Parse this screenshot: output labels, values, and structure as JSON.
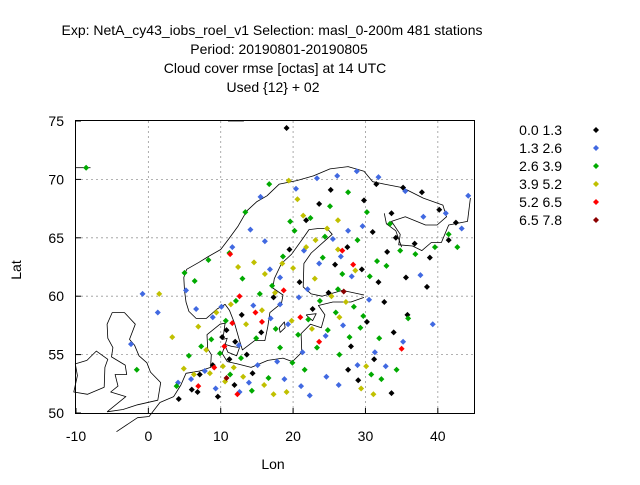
{
  "chart_data": {
    "type": "scatter",
    "title_lines": [
      "Exp: NetA_cy43_iobs_roel_v1   Selection: masl_0-200m    481 stations",
      "Period: 20190801-20190805",
      "Cloud cover rmse [octas] at  14 UTC",
      "Used {12} + 02"
    ],
    "xlabel": "Lon",
    "ylabel": "Lat",
    "xlim": [
      -10,
      45
    ],
    "ylim": [
      50,
      75
    ],
    "xticks": [
      -10,
      0,
      10,
      20,
      30,
      40
    ],
    "yticks": [
      50,
      55,
      60,
      65,
      70,
      75
    ],
    "grid": true,
    "legend_position": "right",
    "series": [
      {
        "name": "0.0 1.3",
        "color": "#000000",
        "points": [
          [
            19.1,
            74.4
          ],
          [
            31.5,
            69.6
          ],
          [
            35.2,
            69.3
          ],
          [
            37.8,
            68.9
          ],
          [
            40.2,
            67.4
          ],
          [
            42.5,
            66.3
          ],
          [
            33.6,
            67.1
          ],
          [
            29.8,
            68.2
          ],
          [
            31.0,
            65.5
          ],
          [
            34.2,
            65.0
          ],
          [
            36.8,
            64.5
          ],
          [
            41.5,
            64.8
          ],
          [
            38.9,
            63.3
          ],
          [
            33.0,
            63.8
          ],
          [
            29.5,
            62.3
          ],
          [
            31.8,
            61.2
          ],
          [
            35.6,
            61.6
          ],
          [
            38.5,
            60.8
          ],
          [
            32.6,
            59.5
          ],
          [
            35.8,
            58.4
          ],
          [
            33.9,
            56.9
          ],
          [
            30.2,
            57.8
          ],
          [
            28.0,
            55.7
          ],
          [
            31.2,
            54.6
          ],
          [
            27.6,
            53.7
          ],
          [
            29.0,
            52.8
          ],
          [
            33.6,
            51.7
          ],
          [
            21.8,
            66.5
          ],
          [
            19.5,
            64.0
          ],
          [
            20.9,
            61.2
          ],
          [
            17.3,
            59.9
          ],
          [
            12.9,
            58.4
          ],
          [
            10.8,
            57.1
          ],
          [
            12.0,
            56.1
          ],
          [
            13.6,
            55.0
          ],
          [
            11.2,
            54.6
          ],
          [
            8.9,
            54.1
          ],
          [
            7.1,
            53.3
          ],
          [
            6.0,
            52.0
          ],
          [
            9.6,
            51.4
          ],
          [
            11.9,
            52.4
          ],
          [
            14.4,
            53.4
          ],
          [
            4.2,
            51.2
          ],
          [
            6.8,
            51.8
          ],
          [
            10.2,
            56.5
          ],
          [
            15.6,
            56.9
          ],
          [
            22.7,
            58.9
          ],
          [
            24.9,
            60.3
          ],
          [
            25.8,
            62.7
          ],
          [
            27.5,
            64.2
          ],
          [
            23.6,
            67.9
          ],
          [
            25.2,
            69.1
          ]
        ]
      },
      {
        "name": "1.3 2.6",
        "color": "#4169e1",
        "points": [
          [
            -0.8,
            60.2
          ],
          [
            1.3,
            58.6
          ],
          [
            -2.4,
            55.9
          ],
          [
            4.1,
            52.6
          ],
          [
            5.9,
            52.9
          ],
          [
            7.8,
            53.6
          ],
          [
            9.3,
            52.1
          ],
          [
            12.6,
            51.8
          ],
          [
            13.9,
            52.6
          ],
          [
            15.1,
            54.1
          ],
          [
            17.8,
            54.4
          ],
          [
            18.8,
            52.9
          ],
          [
            21.1,
            52.3
          ],
          [
            22.3,
            51.5
          ],
          [
            24.6,
            53.1
          ],
          [
            26.3,
            52.4
          ],
          [
            28.9,
            54.1
          ],
          [
            31.3,
            55.2
          ],
          [
            32.8,
            54.0
          ],
          [
            35.2,
            56.1
          ],
          [
            14.5,
            59.2
          ],
          [
            16.9,
            58.1
          ],
          [
            18.2,
            59.3
          ],
          [
            20.8,
            59.9
          ],
          [
            22.0,
            60.6
          ],
          [
            23.6,
            62.8
          ],
          [
            25.5,
            64.9
          ],
          [
            27.6,
            65.6
          ],
          [
            29.6,
            66.0
          ],
          [
            26.6,
            63.4
          ],
          [
            28.1,
            61.7
          ],
          [
            21.5,
            63.9
          ],
          [
            18.2,
            61.6
          ],
          [
            16.8,
            62.3
          ],
          [
            16.1,
            64.7
          ],
          [
            14.1,
            65.7
          ],
          [
            11.6,
            64.2
          ],
          [
            15.5,
            68.5
          ],
          [
            20.4,
            69.2
          ],
          [
            23.3,
            70.1
          ],
          [
            26.1,
            70.3
          ],
          [
            28.8,
            70.7
          ],
          [
            31.8,
            70.2
          ],
          [
            35.5,
            69.0
          ],
          [
            38.0,
            66.8
          ],
          [
            41.1,
            67.1
          ],
          [
            43.3,
            65.8
          ],
          [
            44.2,
            68.6
          ],
          [
            37.6,
            61.8
          ],
          [
            39.3,
            57.6
          ],
          [
            12.5,
            55.8
          ],
          [
            10.1,
            59.1
          ],
          [
            8.9,
            58.2
          ],
          [
            6.6,
            58.9
          ],
          [
            5.2,
            60.5
          ],
          [
            26.9,
            57.5
          ],
          [
            24.5,
            56.6
          ],
          [
            21.3,
            55.2
          ],
          [
            19.3,
            57.6
          ],
          [
            30.5,
            59.7
          ]
        ]
      },
      {
        "name": "2.6 3.9",
        "color": "#00aa00",
        "points": [
          [
            -8.6,
            71.0
          ],
          [
            -1.6,
            53.7
          ],
          [
            3.9,
            52.3
          ],
          [
            5.6,
            54.9
          ],
          [
            7.3,
            55.7
          ],
          [
            8.7,
            56.3
          ],
          [
            9.9,
            55.1
          ],
          [
            11.3,
            53.3
          ],
          [
            12.8,
            54.7
          ],
          [
            14.3,
            51.9
          ],
          [
            16.6,
            53.0
          ],
          [
            18.2,
            55.6
          ],
          [
            19.9,
            54.3
          ],
          [
            21.6,
            53.7
          ],
          [
            23.3,
            55.6
          ],
          [
            24.8,
            57.1
          ],
          [
            26.4,
            55.0
          ],
          [
            27.8,
            56.5
          ],
          [
            29.3,
            57.3
          ],
          [
            30.8,
            53.3
          ],
          [
            32.2,
            52.9
          ],
          [
            34.3,
            53.7
          ],
          [
            22.1,
            58.0
          ],
          [
            23.7,
            59.6
          ],
          [
            26.2,
            60.6
          ],
          [
            28.4,
            59.1
          ],
          [
            30.6,
            61.7
          ],
          [
            32.9,
            62.6
          ],
          [
            34.8,
            63.9
          ],
          [
            36.9,
            63.6
          ],
          [
            39.6,
            64.2
          ],
          [
            41.5,
            65.3
          ],
          [
            42.7,
            64.2
          ],
          [
            33.4,
            66.2
          ],
          [
            30.2,
            67.2
          ],
          [
            27.6,
            68.9
          ],
          [
            25.1,
            67.7
          ],
          [
            22.4,
            66.7
          ],
          [
            20.2,
            65.6
          ],
          [
            18.6,
            63.4
          ],
          [
            17.1,
            60.9
          ],
          [
            15.4,
            60.2
          ],
          [
            13.0,
            61.5
          ],
          [
            11.2,
            63.7
          ],
          [
            13.4,
            67.2
          ],
          [
            16.7,
            69.6
          ],
          [
            5.0,
            62.0
          ],
          [
            6.4,
            61.3
          ],
          [
            8.3,
            63.1
          ],
          [
            24.1,
            63.3
          ],
          [
            26.8,
            61.9
          ],
          [
            28.9,
            64.8
          ],
          [
            31.6,
            63.0
          ],
          [
            29.7,
            58.3
          ],
          [
            25.9,
            58.6
          ],
          [
            20.7,
            56.7
          ],
          [
            17.6,
            57.2
          ],
          [
            10.7,
            57.9
          ],
          [
            12.1,
            59.6
          ],
          [
            14.9,
            56.4
          ],
          [
            31.9,
            56.4
          ],
          [
            35.9,
            58.1
          ],
          [
            19.6,
            66.4
          ],
          [
            24.4,
            65.1
          ]
        ]
      },
      {
        "name": "3.9 5.2",
        "color": "#c0c000",
        "points": [
          [
            1.5,
            60.2
          ],
          [
            3.3,
            56.5
          ],
          [
            4.9,
            53.8
          ],
          [
            6.3,
            53.3
          ],
          [
            8.5,
            53.4
          ],
          [
            10.6,
            52.7
          ],
          [
            11.8,
            53.9
          ],
          [
            13.1,
            53.1
          ],
          [
            16.0,
            52.4
          ],
          [
            17.3,
            51.6
          ],
          [
            19.1,
            51.8
          ],
          [
            10.3,
            54.0
          ],
          [
            8.0,
            55.4
          ],
          [
            6.9,
            57.4
          ],
          [
            9.4,
            58.6
          ],
          [
            11.4,
            59.3
          ],
          [
            13.5,
            57.6
          ],
          [
            15.7,
            58.8
          ],
          [
            17.5,
            60.3
          ],
          [
            16.1,
            61.9
          ],
          [
            14.6,
            62.9
          ],
          [
            12.4,
            62.5
          ],
          [
            18.5,
            62.8
          ],
          [
            20.0,
            62.4
          ],
          [
            21.8,
            64.2
          ],
          [
            23.1,
            64.8
          ],
          [
            24.7,
            65.8
          ],
          [
            26.2,
            66.5
          ],
          [
            23.0,
            61.5
          ],
          [
            25.3,
            60.0
          ],
          [
            27.3,
            59.5
          ],
          [
            28.6,
            62.2
          ],
          [
            26.4,
            58.2
          ],
          [
            22.6,
            57.2
          ],
          [
            19.8,
            57.9
          ],
          [
            30.1,
            54.0
          ],
          [
            29.4,
            52.1
          ],
          [
            31.1,
            51.6
          ],
          [
            21.4,
            66.9
          ],
          [
            20.6,
            68.3
          ],
          [
            19.4,
            69.9
          ],
          [
            26.2,
            64.0
          ]
        ]
      },
      {
        "name": "5.2 6.5",
        "color": "#ff0000",
        "points": [
          [
            6.9,
            52.3
          ],
          [
            9.1,
            53.9
          ],
          [
            10.5,
            55.7
          ],
          [
            11.6,
            57.7
          ],
          [
            12.6,
            60.0
          ],
          [
            14.8,
            58.6
          ],
          [
            12.3,
            51.6
          ],
          [
            15.7,
            57.8
          ],
          [
            18.7,
            60.5
          ],
          [
            21.0,
            58.2
          ],
          [
            23.6,
            56.1
          ],
          [
            26.8,
            63.9
          ],
          [
            28.3,
            62.7
          ],
          [
            35.0,
            55.5
          ],
          [
            11.3,
            63.6
          ]
        ]
      },
      {
        "name": "6.5 7.8",
        "color": "#8b0000",
        "points": [
          [
            10.8,
            53.0
          ],
          [
            27.0,
            60.4
          ]
        ]
      }
    ]
  }
}
